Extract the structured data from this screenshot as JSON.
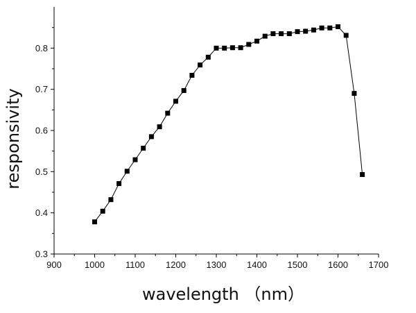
{
  "chart_data": {
    "type": "line",
    "markers": "square",
    "title": "",
    "xlabel": "wavelength （nm）",
    "ylabel": "responsivity",
    "xlim": [
      900,
      1700
    ],
    "ylim": [
      0.3,
      0.9
    ],
    "xticks": [
      "900",
      "1000",
      "1100",
      "1200",
      "1300",
      "1400",
      "1500",
      "1600",
      "1700"
    ],
    "yticks": [
      "0.3",
      "0.4",
      "0.5",
      "0.6",
      "0.7",
      "0.8"
    ],
    "grid": false,
    "series": [
      {
        "x": [
          1000,
          1020,
          1040,
          1060,
          1080,
          1100,
          1120,
          1140,
          1160,
          1180,
          1200,
          1220,
          1240,
          1260,
          1280,
          1300,
          1320,
          1340,
          1360,
          1380,
          1400,
          1420,
          1440,
          1460,
          1480,
          1500,
          1520,
          1540,
          1560,
          1580,
          1600,
          1620,
          1640,
          1660
        ],
        "y": [
          0.378,
          0.404,
          0.432,
          0.471,
          0.501,
          0.529,
          0.557,
          0.585,
          0.609,
          0.642,
          0.671,
          0.697,
          0.734,
          0.759,
          0.778,
          0.8,
          0.8,
          0.801,
          0.801,
          0.809,
          0.817,
          0.829,
          0.835,
          0.835,
          0.835,
          0.84,
          0.841,
          0.844,
          0.849,
          0.849,
          0.852,
          0.831,
          0.69,
          0.493
        ],
        "color": "#000000"
      }
    ]
  }
}
